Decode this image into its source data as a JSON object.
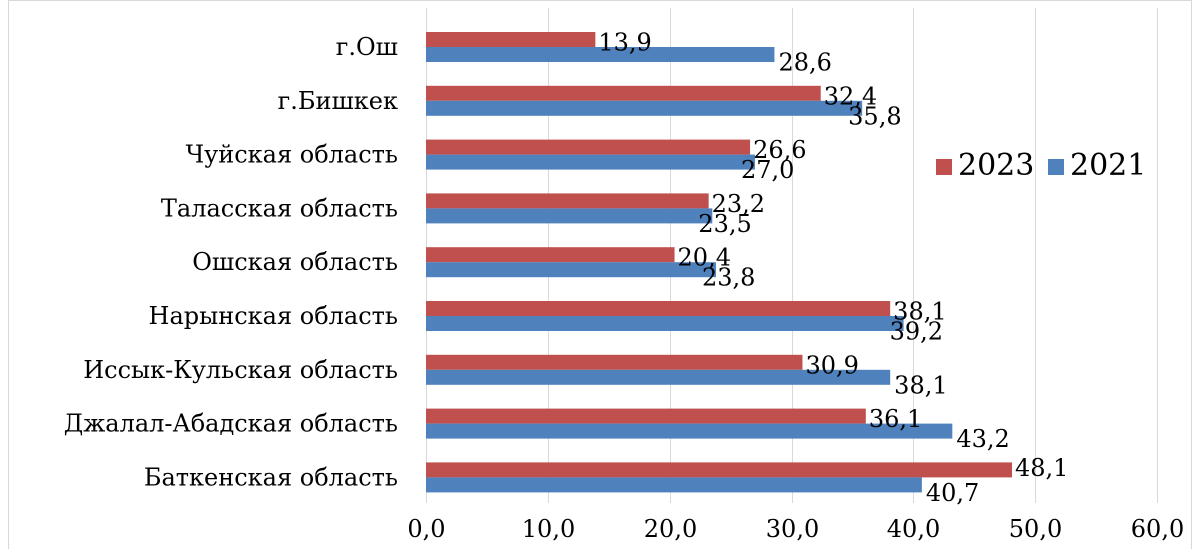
{
  "chart_data": {
    "type": "bar",
    "orientation": "horizontal",
    "categories": [
      "г.Ош",
      "г.Бишкек",
      "Чуйская область",
      "Таласская область",
      "Ошская область",
      "Нарынская область",
      "Иссык-Кульская область",
      "Джалал-Абадская область",
      "Баткенская область"
    ],
    "series": [
      {
        "name": "2023",
        "color": "#c0504d",
        "values": [
          13.9,
          32.4,
          26.6,
          23.2,
          20.4,
          38.1,
          30.9,
          36.1,
          48.1
        ],
        "labels": [
          "13,9",
          "32,4",
          "26,6",
          "23,2",
          "20,4",
          "38,1",
          "30,9",
          "36,1",
          "48,1"
        ]
      },
      {
        "name": "2021",
        "color": "#4f81bd",
        "values": [
          28.6,
          35.8,
          27.0,
          23.5,
          23.8,
          39.2,
          38.1,
          43.2,
          40.7
        ],
        "labels": [
          "28,6",
          "35,8",
          "27,0",
          "23,5",
          "23,8",
          "39,2",
          "38,1",
          "43,2",
          "40,7"
        ]
      }
    ],
    "xlim": [
      0,
      60
    ],
    "x_ticks": [
      0,
      10,
      20,
      30,
      40,
      50,
      60
    ],
    "x_tick_labels": [
      "0,0",
      "10,0",
      "20,0",
      "30,0",
      "40,0",
      "50,0",
      "60,0"
    ],
    "grid": true,
    "legend_position": "right",
    "title": "",
    "xlabel": "",
    "ylabel": ""
  }
}
